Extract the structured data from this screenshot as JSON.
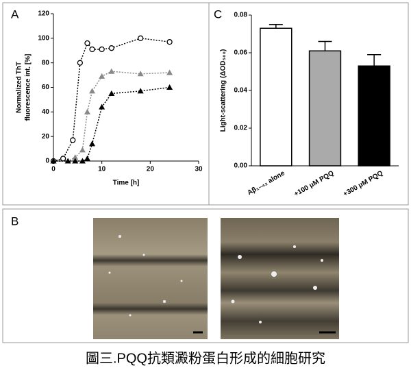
{
  "panels": [
    "A",
    "B",
    "C"
  ],
  "caption": "圖三.PQQ抗類澱粉蛋白形成的細胞研究",
  "chart_data": [
    {
      "type": "scatter",
      "xlabel": "Time [h]",
      "ylabel": [
        "Normalized ThT",
        "fluorescence int. [%]"
      ],
      "xlim": [
        0,
        30
      ],
      "xticks": [
        0,
        10,
        20,
        30
      ],
      "ylim": [
        0,
        120
      ],
      "yticks": [
        0,
        20,
        40,
        60,
        80,
        100,
        120
      ],
      "series": [
        {
          "color": "#000000",
          "marker": "circle",
          "x": [
            0,
            2,
            4,
            5.5,
            7,
            8,
            10,
            12,
            18,
            24
          ],
          "values": [
            0,
            2,
            17,
            80,
            96,
            91,
            91,
            92,
            100,
            97
          ]
        },
        {
          "color": "#888888",
          "marker": "triangle",
          "x": [
            0,
            3,
            4.5,
            6,
            7,
            8,
            10,
            12,
            18,
            24
          ],
          "values": [
            0,
            0,
            3,
            9,
            40,
            57,
            69,
            73,
            71,
            72
          ]
        },
        {
          "color": "#000000",
          "marker": "triangle",
          "x": [
            0,
            3,
            4.5,
            6,
            7,
            8,
            10,
            12,
            18,
            24
          ],
          "values": [
            0,
            0,
            0,
            0,
            2,
            14,
            44,
            55,
            57,
            60
          ]
        }
      ]
    },
    {
      "type": "bar",
      "ylabel": "Light-scattering (ΔOD₅₀₀)",
      "categories": [
        "Aβ₁₋₄₂ alone",
        "+100 μM PQQ",
        "+300 μM PQQ"
      ],
      "values": [
        0.073,
        0.061,
        0.053
      ],
      "errors": [
        0.002,
        0.005,
        0.006
      ],
      "colors": [
        "#ffffff",
        "#aaaaaa",
        "#000000"
      ],
      "ylim": [
        0,
        0.08
      ],
      "yticks": [
        {
          "value": 0,
          "label": "0.00"
        },
        {
          "value": 0.02,
          "label": "0.02"
        },
        {
          "value": 0.04,
          "label": "0.04"
        },
        {
          "value": 0.06,
          "label": "0.06"
        },
        {
          "value": 0.08,
          "label": "0.08"
        }
      ]
    }
  ]
}
